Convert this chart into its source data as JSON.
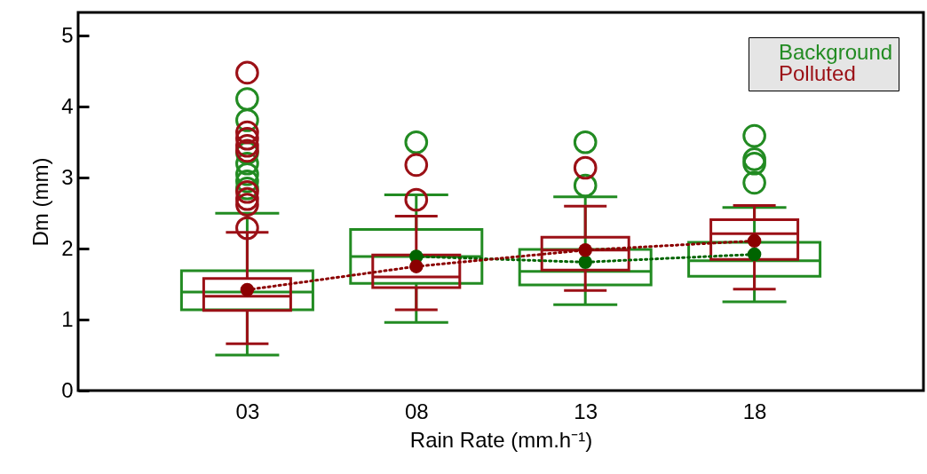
{
  "chart_data": {
    "type": "box",
    "xlabel": "Rain Rate (mm.h⁻¹)",
    "ylabel": "Dm (mm)",
    "categories": [
      "03",
      "08",
      "13",
      "18"
    ],
    "ylim": [
      0,
      5.33
    ],
    "yticks": [
      0,
      1,
      2,
      3,
      4,
      5
    ],
    "grid": false,
    "legend": "top right",
    "series": [
      {
        "type": "box",
        "name": "Background",
        "color": "#228b22",
        "boxes": [
          {
            "low": 0.5,
            "q1": 1.14,
            "median": 1.39,
            "q3": 1.69,
            "high": 2.5,
            "outliers": [
              4.11,
              3.81,
              3.35,
              3.2,
              3.05,
              2.95,
              2.85
            ]
          },
          {
            "low": 0.96,
            "q1": 1.51,
            "median": 1.89,
            "q3": 2.27,
            "high": 2.76,
            "outliers": [
              3.5
            ]
          },
          {
            "low": 1.21,
            "q1": 1.49,
            "median": 1.68,
            "q3": 1.99,
            "high": 2.73,
            "outliers": [
              3.5,
              2.89
            ]
          },
          {
            "low": 1.25,
            "q1": 1.61,
            "median": 1.83,
            "q3": 2.09,
            "high": 2.58,
            "outliers": [
              3.59,
              3.26,
              3.2,
              2.93
            ]
          }
        ]
      },
      {
        "type": "box",
        "name": "Polluted",
        "color": "#9b1016",
        "boxes": [
          {
            "low": 0.66,
            "q1": 1.13,
            "median": 1.33,
            "q3": 1.58,
            "high": 2.23,
            "outliers": [
              4.48,
              3.64,
              3.55,
              3.45,
              3.38,
              2.8,
              2.7,
              2.62,
              2.29
            ]
          },
          {
            "low": 1.14,
            "q1": 1.45,
            "median": 1.6,
            "q3": 1.91,
            "high": 2.46,
            "outliers": [
              3.18,
              2.69
            ]
          },
          {
            "low": 1.41,
            "q1": 1.7,
            "median": 1.98,
            "q3": 2.16,
            "high": 2.6,
            "outliers": [
              3.14
            ]
          },
          {
            "low": 1.43,
            "q1": 1.85,
            "median": 2.21,
            "q3": 2.41,
            "high": 2.61
          }
        ]
      },
      {
        "type": "line",
        "color": "#006400",
        "values": [
          null,
          1.89,
          1.81,
          1.92
        ],
        "line_style": "dotted",
        "marker": "circle"
      },
      {
        "type": "line",
        "color": "#8b0000",
        "values": [
          1.42,
          1.75,
          1.98,
          2.11
        ],
        "line_style": "dotted",
        "marker": "circle"
      }
    ]
  }
}
